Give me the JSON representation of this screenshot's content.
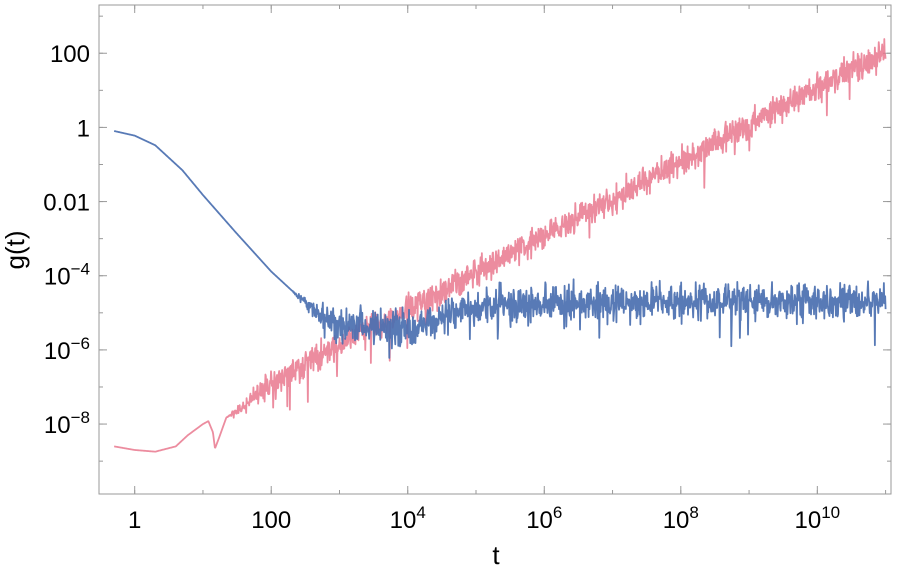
{
  "chart_data": {
    "type": "line",
    "xlabel": "t",
    "ylabel": "g(t)",
    "xscale": "log",
    "yscale": "log",
    "xlim": [
      0.3,
      120000000000.0
    ],
    "ylim": [
      1.3e-10,
      2000
    ],
    "x_ticks": [
      {
        "value": 1,
        "label": "1"
      },
      {
        "value": 100,
        "label": "100"
      },
      {
        "value": 10000.0,
        "base": "10",
        "exp": "4"
      },
      {
        "value": 1000000.0,
        "base": "10",
        "exp": "6"
      },
      {
        "value": 100000000.0,
        "base": "10",
        "exp": "8"
      },
      {
        "value": 10000000000.0,
        "base": "10",
        "exp": "10"
      }
    ],
    "y_ticks": [
      {
        "value": 100,
        "label": "100"
      },
      {
        "value": 1,
        "label": "1"
      },
      {
        "value": 0.01,
        "label": "0.01"
      },
      {
        "value": 0.0001,
        "base": "10",
        "exp": "−4"
      },
      {
        "value": 1e-06,
        "base": "10",
        "exp": "−6"
      },
      {
        "value": 1e-08,
        "base": "10",
        "exp": "−8"
      }
    ],
    "series": [
      {
        "color": "#e8738a",
        "opacity": 0.82,
        "points": [
          [
            0.5,
            2.5e-09
          ],
          [
            1,
            2e-09
          ],
          [
            2,
            1.8e-09
          ],
          [
            4,
            2.5e-09
          ],
          [
            6,
            5e-09
          ],
          [
            10,
            1e-08
          ],
          [
            12,
            1.2e-08
          ],
          [
            14,
            6e-09
          ],
          [
            15,
            2.2e-09
          ],
          [
            17,
            4e-09
          ],
          [
            22,
            1.5e-08
          ],
          [
            40,
            3e-08
          ],
          [
            100,
            1.2e-07
          ],
          [
            300,
            4e-07
          ],
          [
            1000,
            1.5e-06
          ],
          [
            10000.0,
            1.2e-05
          ],
          [
            100000.0,
            0.00012
          ],
          [
            1000000.0,
            0.0012
          ],
          [
            10000000.0,
            0.011
          ],
          [
            100000000.0,
            0.12
          ],
          [
            1000000000.0,
            1.2
          ],
          [
            10000000000.0,
            12
          ],
          [
            100000000000.0,
            100
          ]
        ],
        "noise_from": 22,
        "noise_amplitude_decades": 0.55
      },
      {
        "color": "#4a6fb0",
        "opacity": 0.92,
        "points": [
          [
            0.5,
            0.8
          ],
          [
            1,
            0.6
          ],
          [
            2,
            0.33
          ],
          [
            5,
            0.07
          ],
          [
            10,
            0.015
          ],
          [
            30,
            0.0015
          ],
          [
            100,
            0.00013
          ],
          [
            200,
            4e-05
          ],
          [
            400,
            1.2e-05
          ],
          [
            700,
            6e-06
          ],
          [
            1000,
            5e-06
          ],
          [
            10000.0,
            4e-06
          ],
          [
            100000.0,
            1.5e-05
          ],
          [
            1000000.0,
            2e-05
          ],
          [
            100000000000.0,
            2e-05
          ]
        ],
        "noise_from": 200,
        "noise_amplitude_decades": 0.7
      }
    ]
  }
}
